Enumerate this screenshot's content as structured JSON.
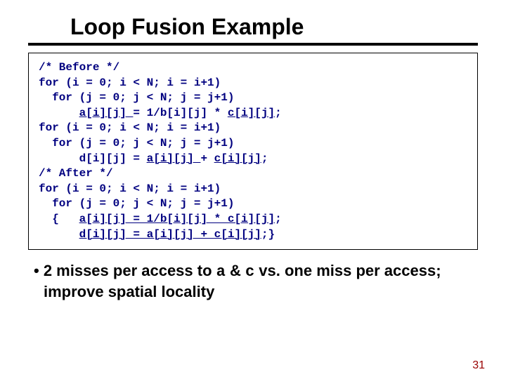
{
  "title": "Loop Fusion Example",
  "code": {
    "c1": "/* Before */",
    "l1_a": "for (i = 0; i < N; i = i+1)",
    "l1_b": "  for (j = 0; j < N; j = j+1)",
    "l1_c_pre": "      ",
    "l1_c_u1": "a[i][j] ",
    "l1_c_mid": "= 1/b[i][j] * ",
    "l1_c_u2": "c[i][j]",
    "l1_c_end": ";",
    "l2_a": "for (i = 0; i < N; i = i+1)",
    "l2_b": "  for (j = 0; j < N; j = j+1)",
    "l2_c_pre": "      d[i][j] = ",
    "l2_c_u1": "a[i][j] ",
    "l2_c_mid": "+ ",
    "l2_c_u2": "c[i][j]",
    "l2_c_end": ";",
    "c2": "/* After */",
    "l3_a": "for (i = 0; i < N; i = i+1)",
    "l3_b": "  for (j = 0; j < N; j = j+1)",
    "l3_c_pre": "  {   ",
    "l3_c_u": "a[i][j] = 1/b[i][j] * c[i][j]",
    "l3_c_end": ";",
    "l3_d_pre": "      ",
    "l3_d_u": "d[i][j] = a[i][j] + c[i][j]",
    "l3_d_end": ";}"
  },
  "bullet": {
    "lead": "•  2 misses per access to ",
    "a": "a",
    "amp": " & ",
    "c": "c",
    "rest": " vs. one miss per access; improve spatial locality"
  },
  "pagenum": "31",
  "colors": {
    "code_text": "#000080",
    "body_text": "#000000",
    "pagenum": "#990000",
    "bg": "#ffffff"
  }
}
